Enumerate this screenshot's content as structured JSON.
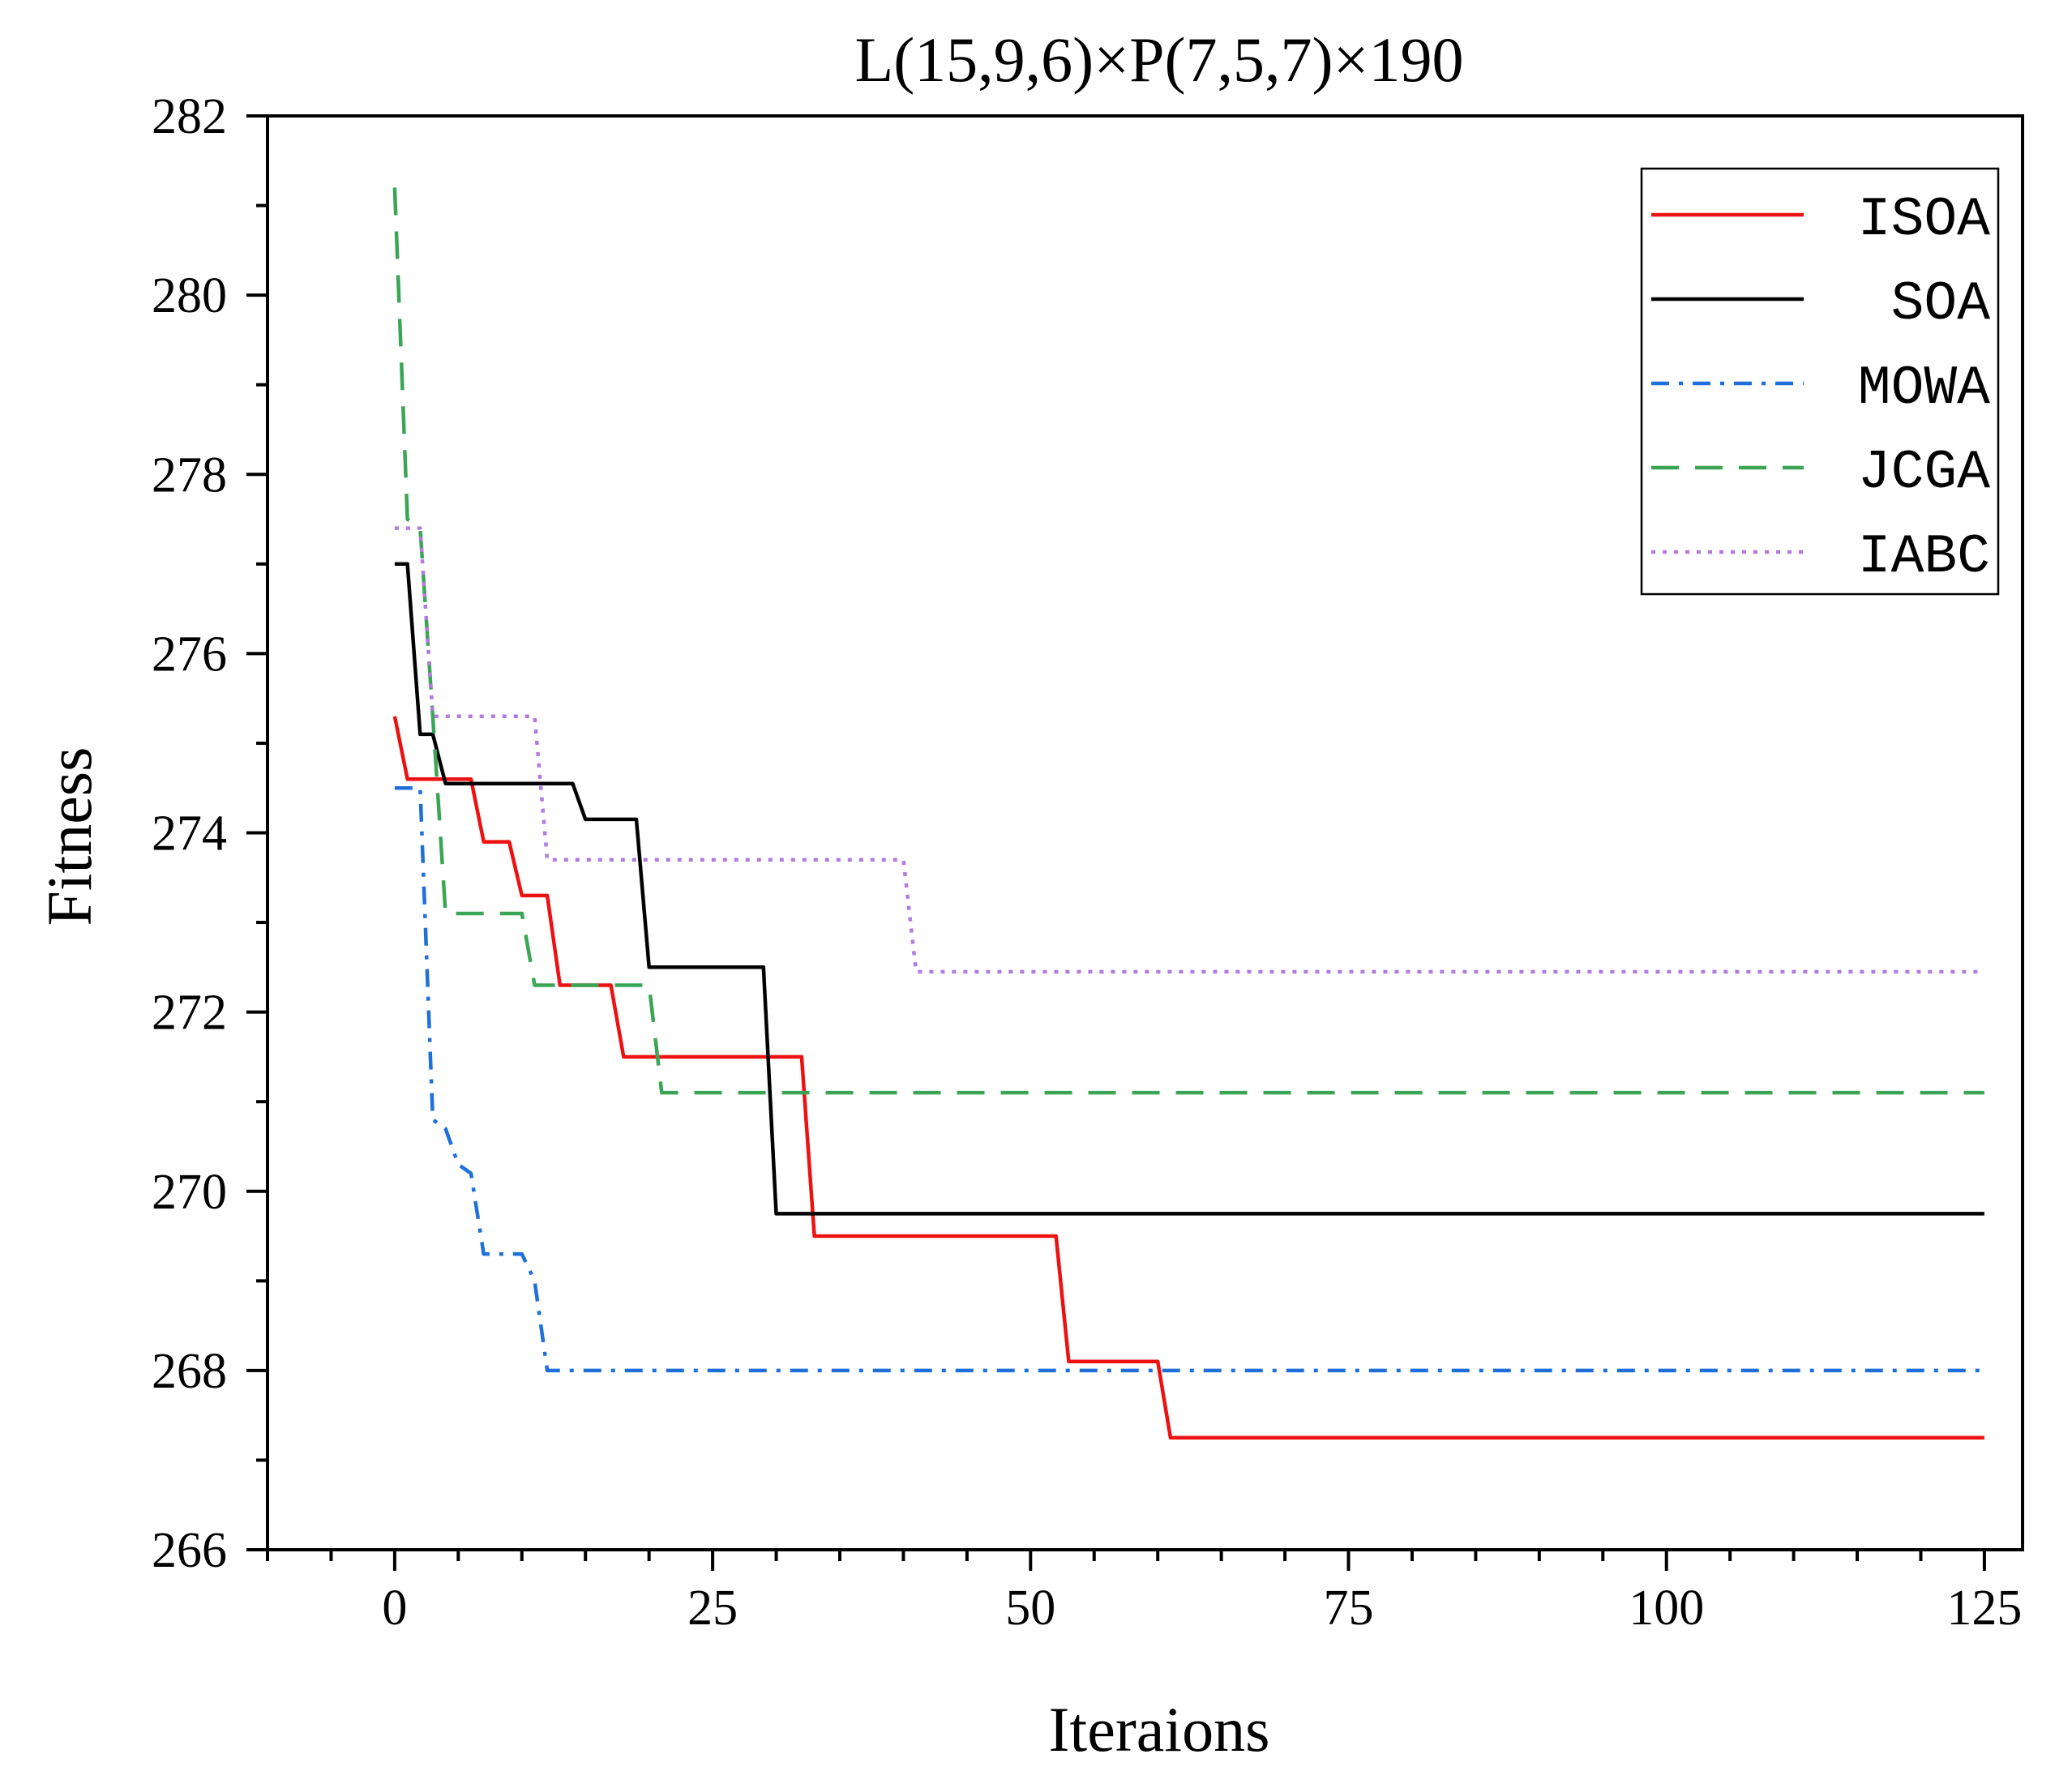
{
  "chart_data": {
    "type": "line",
    "title": "L(15,9,6)×P(7,5,7)×190",
    "xlabel": "Iteraions",
    "ylabel": "Fitness",
    "xlim": [
      -10,
      128
    ],
    "ylim": [
      266,
      282
    ],
    "xticks": [
      0,
      25,
      50,
      75,
      100,
      125
    ],
    "yticks": [
      266,
      268,
      270,
      272,
      274,
      276,
      278,
      280,
      282
    ],
    "x_minor_step": 5,
    "y_minor_step": 1,
    "grid": false,
    "legend_position": "top-right",
    "series": [
      {
        "name": "ISOA",
        "color": "#ee1111",
        "dash": "solid",
        "points": [
          [
            0,
            275.3
          ],
          [
            1,
            274.6
          ],
          [
            6,
            274.6
          ],
          [
            7,
            273.9
          ],
          [
            9,
            273.9
          ],
          [
            10,
            273.3
          ],
          [
            12,
            273.3
          ],
          [
            13,
            272.3
          ],
          [
            17,
            272.3
          ],
          [
            18,
            271.5
          ],
          [
            32,
            271.5
          ],
          [
            33,
            269.5
          ],
          [
            52,
            269.5
          ],
          [
            53,
            268.1
          ],
          [
            60,
            268.1
          ],
          [
            61,
            267.25
          ],
          [
            125,
            267.25
          ]
        ]
      },
      {
        "name": "SOA",
        "color": "#000000",
        "dash": "solid",
        "points": [
          [
            0,
            277
          ],
          [
            1,
            277
          ],
          [
            2,
            275.1
          ],
          [
            3,
            275.1
          ],
          [
            4,
            274.55
          ],
          [
            14,
            274.55
          ],
          [
            15,
            274.15
          ],
          [
            19,
            274.15
          ],
          [
            20,
            272.5
          ],
          [
            29,
            272.5
          ],
          [
            30,
            269.75
          ],
          [
            125,
            269.75
          ]
        ]
      },
      {
        "name": "MOWA",
        "color": "#1e6fd9",
        "dash": "dashdot",
        "points": [
          [
            0,
            274.5
          ],
          [
            2,
            274.5
          ],
          [
            3,
            270.8
          ],
          [
            4,
            270.7
          ],
          [
            5,
            270.3
          ],
          [
            6,
            270.2
          ],
          [
            7,
            269.3
          ],
          [
            10,
            269.3
          ],
          [
            11,
            269
          ],
          [
            12,
            268
          ],
          [
            125,
            268
          ]
        ]
      },
      {
        "name": "JCGA",
        "color": "#3aa655",
        "dash": "dashed",
        "points": [
          [
            0,
            281.2
          ],
          [
            1,
            277.5
          ],
          [
            2,
            277.4
          ],
          [
            3,
            275.3
          ],
          [
            4,
            273.1
          ],
          [
            10,
            273.1
          ],
          [
            11,
            272.3
          ],
          [
            20,
            272.3
          ],
          [
            21,
            271.1
          ],
          [
            125,
            271.1
          ]
        ]
      },
      {
        "name": "IABC",
        "color": "#b07ae0",
        "dash": "dotted",
        "points": [
          [
            0,
            277.4
          ],
          [
            2,
            277.4
          ],
          [
            3,
            275.3
          ],
          [
            11,
            275.3
          ],
          [
            12,
            273.7
          ],
          [
            40,
            273.7
          ],
          [
            41,
            272.45
          ],
          [
            125,
            272.45
          ]
        ]
      }
    ]
  }
}
